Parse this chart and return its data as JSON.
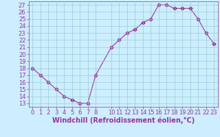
{
  "x": [
    0,
    1,
    2,
    3,
    4,
    5,
    6,
    7,
    8,
    10,
    11,
    12,
    13,
    14,
    15,
    16,
    17,
    18,
    19,
    20,
    21,
    22,
    23
  ],
  "y": [
    18,
    17,
    16,
    15,
    14,
    13.5,
    13,
    13,
    17,
    21,
    22,
    23,
    23.5,
    24.5,
    25,
    27,
    27,
    26.5,
    26.5,
    26.5,
    25,
    23,
    21.5
  ],
  "line_color": "#993399",
  "marker": "D",
  "marker_size": 2.5,
  "bg_color": "#cceeff",
  "grid_color": "#99cccc",
  "xlabel": "Windchill (Refroidissement éolien,°C)",
  "xlabel_fontsize": 7,
  "xlim": [
    -0.5,
    23.5
  ],
  "ylim": [
    12.5,
    27.5
  ],
  "yticks": [
    13,
    14,
    15,
    16,
    17,
    18,
    19,
    20,
    21,
    22,
    23,
    24,
    25,
    26,
    27
  ],
  "xticks": [
    0,
    1,
    2,
    3,
    4,
    5,
    6,
    7,
    8,
    10,
    11,
    12,
    13,
    14,
    15,
    16,
    17,
    18,
    19,
    20,
    21,
    22,
    23
  ],
  "tick_fontsize": 6
}
